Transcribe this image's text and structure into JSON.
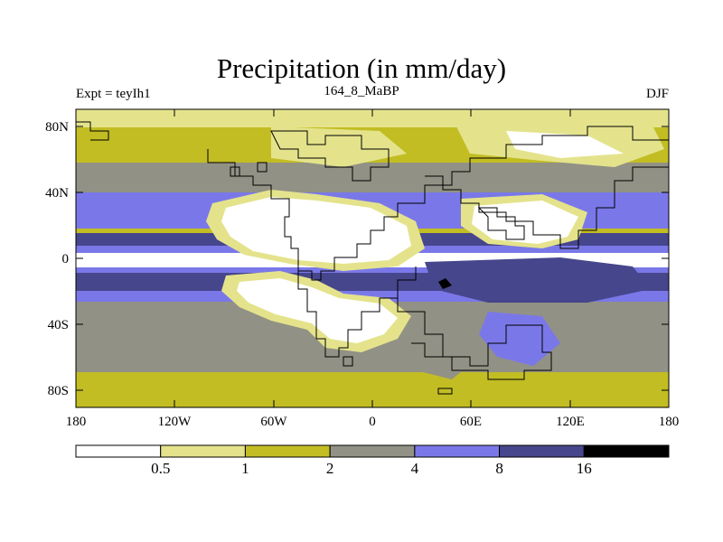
{
  "title": "Precipitation (in mm/day)",
  "expt_label": "Expt = teyIh1",
  "run_label": "164_8_MaBP",
  "season_label": "DJF",
  "lat_ticks": [
    "80N",
    "40N",
    "0",
    "40S",
    "80S"
  ],
  "lon_ticks": [
    "180",
    "120W",
    "60W",
    "0",
    "60E",
    "120E",
    "180"
  ],
  "colorbar": {
    "bounds": [
      "0.5",
      "1",
      "2",
      "4",
      "8",
      "16"
    ],
    "colors": [
      "#ffffff",
      "#e4e38c",
      "#c2bd23",
      "#929185",
      "#7a78e8",
      "#46468c",
      "#000000"
    ]
  }
}
